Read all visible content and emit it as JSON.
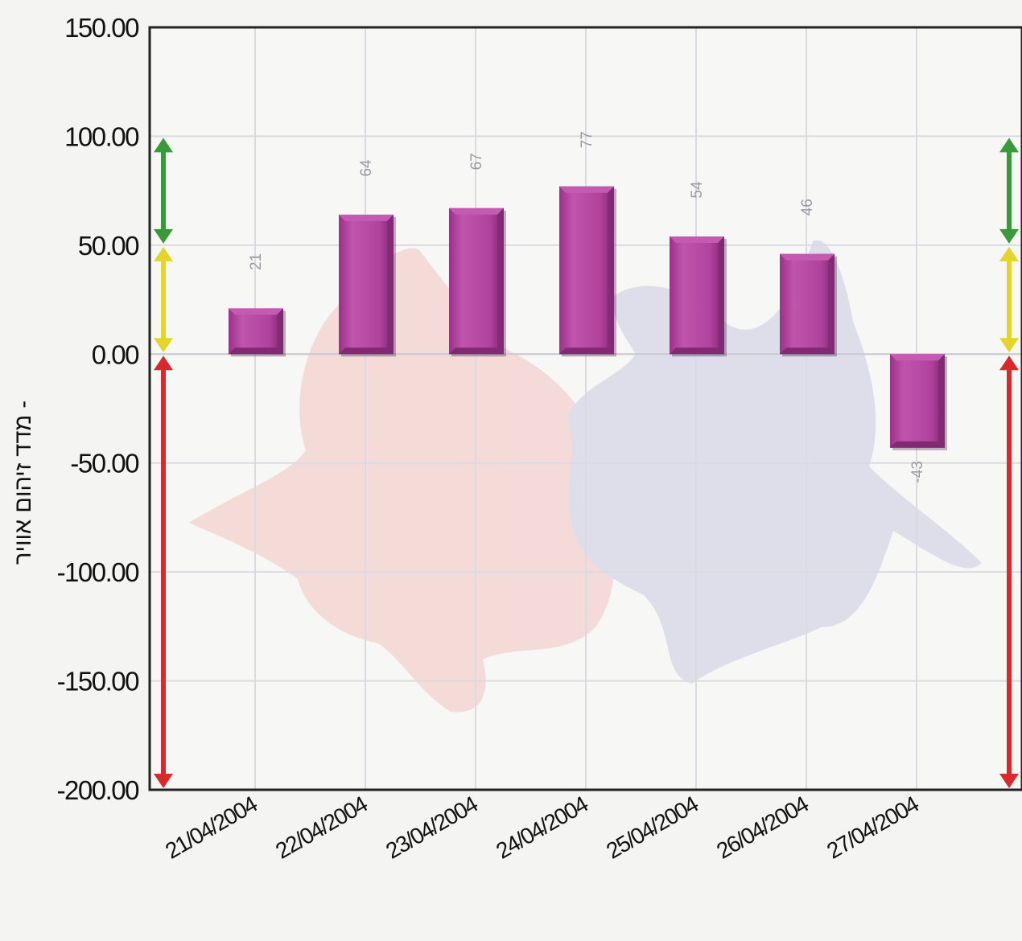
{
  "chart_data": {
    "type": "bar",
    "title": "",
    "xlabel": "",
    "ylabel": "מדד זיהום אוויר -",
    "categories": [
      "21/04/2004",
      "22/04/2004",
      "23/04/2004",
      "24/04/2004",
      "25/04/2004",
      "26/04/2004",
      "27/04/2004"
    ],
    "values": [
      21,
      64,
      67,
      77,
      54,
      46,
      -43
    ],
    "data_labels": [
      "21",
      "64",
      "67",
      "77",
      "54",
      "46",
      "-43"
    ],
    "ylim": [
      -200,
      150
    ],
    "yticks": [
      150,
      100,
      50,
      0,
      -50,
      -100,
      -150,
      -200
    ],
    "ytick_labels": [
      "150.00",
      "100.00",
      "50.00",
      "0.00",
      "-50.00",
      "-100.00",
      "-150.00",
      "-200.00"
    ],
    "grid": true,
    "legend": "none",
    "bar_color": "#b0429d",
    "bar_top_color": "#c55ab3",
    "bar_side_color": "#7f2a73",
    "range_bands": [
      {
        "from": 50,
        "to": 100,
        "color": "#3a9a3a"
      },
      {
        "from": 0,
        "to": 50,
        "color": "#e3d52a"
      },
      {
        "from": -200,
        "to": 0,
        "color": "#d82a2a"
      }
    ]
  }
}
